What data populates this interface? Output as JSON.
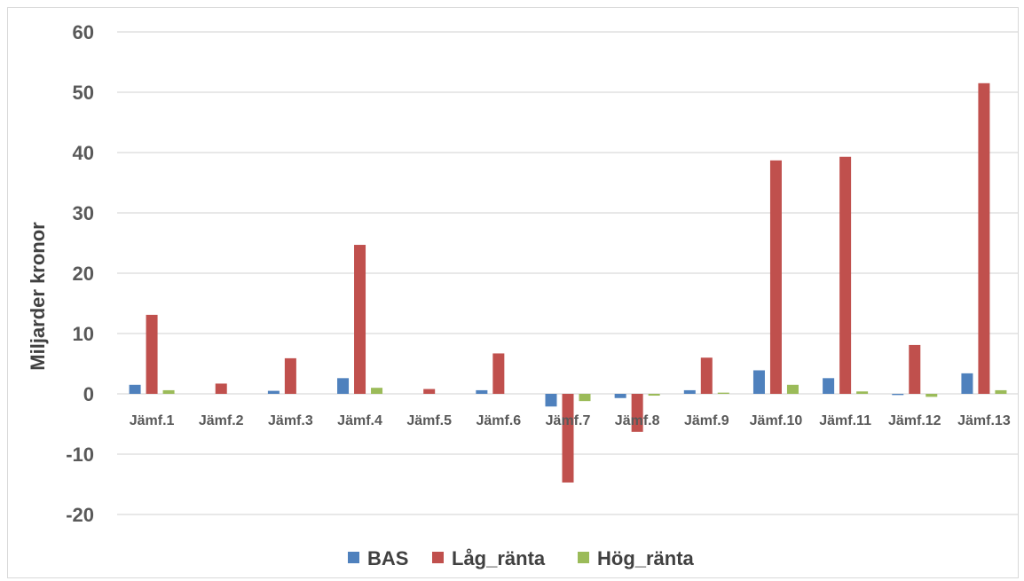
{
  "chart_data": {
    "type": "bar",
    "title": "",
    "xlabel": "",
    "ylabel": "Miljarder kronor",
    "ylim": [
      -20,
      60
    ],
    "yticks": [
      60,
      50,
      40,
      30,
      20,
      10,
      0,
      -10,
      -20
    ],
    "grid": true,
    "legend_position": "bottom",
    "categories": [
      "Jämf.1",
      "Jämf.2",
      "Jämf.3",
      "Jämf.4",
      "Jämf.5",
      "Jämf.6",
      "Jämf.7",
      "Jämf.8",
      "Jämf.9",
      "Jämf.10",
      "Jämf.11",
      "Jämf.12",
      "Jämf.13"
    ],
    "series": [
      {
        "name": "BAS",
        "color": "#4f81bd",
        "values": [
          1.5,
          0,
          0.5,
          2.6,
          0,
          0.6,
          -2.1,
          -0.7,
          0.6,
          3.9,
          2.6,
          -0.2,
          3.4
        ]
      },
      {
        "name": "Låg_ränta",
        "color": "#c0504d",
        "values": [
          13.1,
          1.7,
          5.9,
          24.7,
          0.8,
          6.7,
          -14.7,
          -6.3,
          6.0,
          38.7,
          39.3,
          8.1,
          51.5
        ]
      },
      {
        "name": "Hög_ränta",
        "color": "#9bbb59",
        "values": [
          0.6,
          0,
          0,
          1.0,
          0,
          0,
          -1.2,
          -0.3,
          0.2,
          1.5,
          0.4,
          -0.5,
          0.6
        ]
      }
    ]
  }
}
